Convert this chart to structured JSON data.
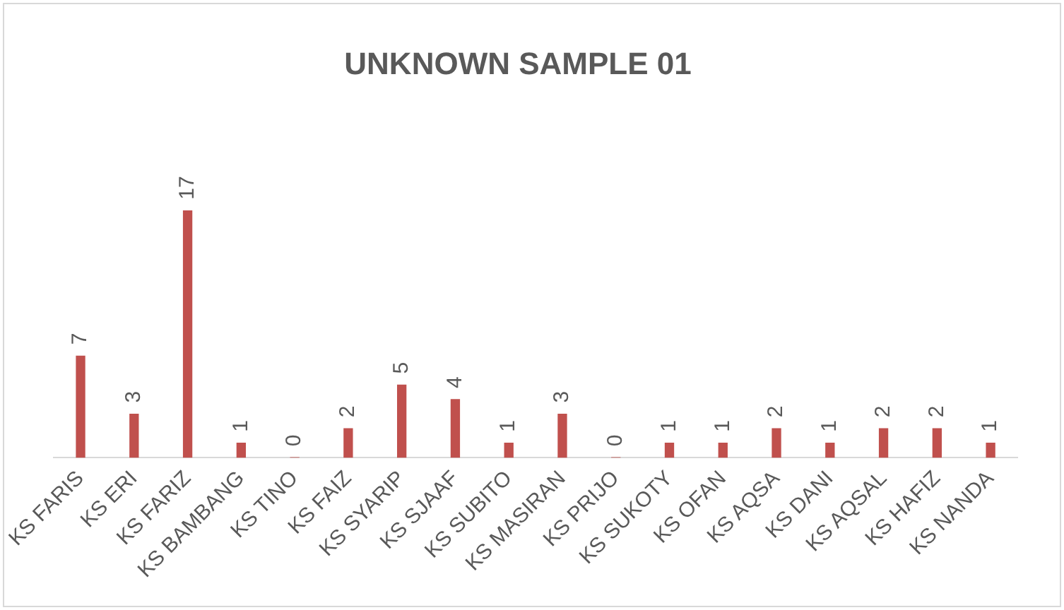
{
  "chart_data": {
    "type": "bar",
    "title": "UNKNOWN SAMPLE 01",
    "categories": [
      "KS FARIS",
      "KS ERI",
      "KS FARIZ",
      "KS BAMBANG",
      "KS TINO",
      "KS FAIZ",
      "KS SYARIP",
      "KS SJAAF",
      "KS SUBITO",
      "KS MASIRAN",
      "KS PRIJO",
      "KS SUKOTY",
      "KS OFAN",
      "KS AQSA",
      "KS DANI",
      "KS AQSAL",
      "KS HAFIZ",
      "KS NANDA"
    ],
    "values": [
      7,
      3,
      17,
      1,
      0,
      2,
      5,
      4,
      1,
      3,
      0,
      1,
      1,
      2,
      1,
      2,
      2,
      1
    ],
    "color": "#c0504d",
    "data_labels": true,
    "grid": false,
    "legend": false,
    "tick_labels": "x"
  }
}
